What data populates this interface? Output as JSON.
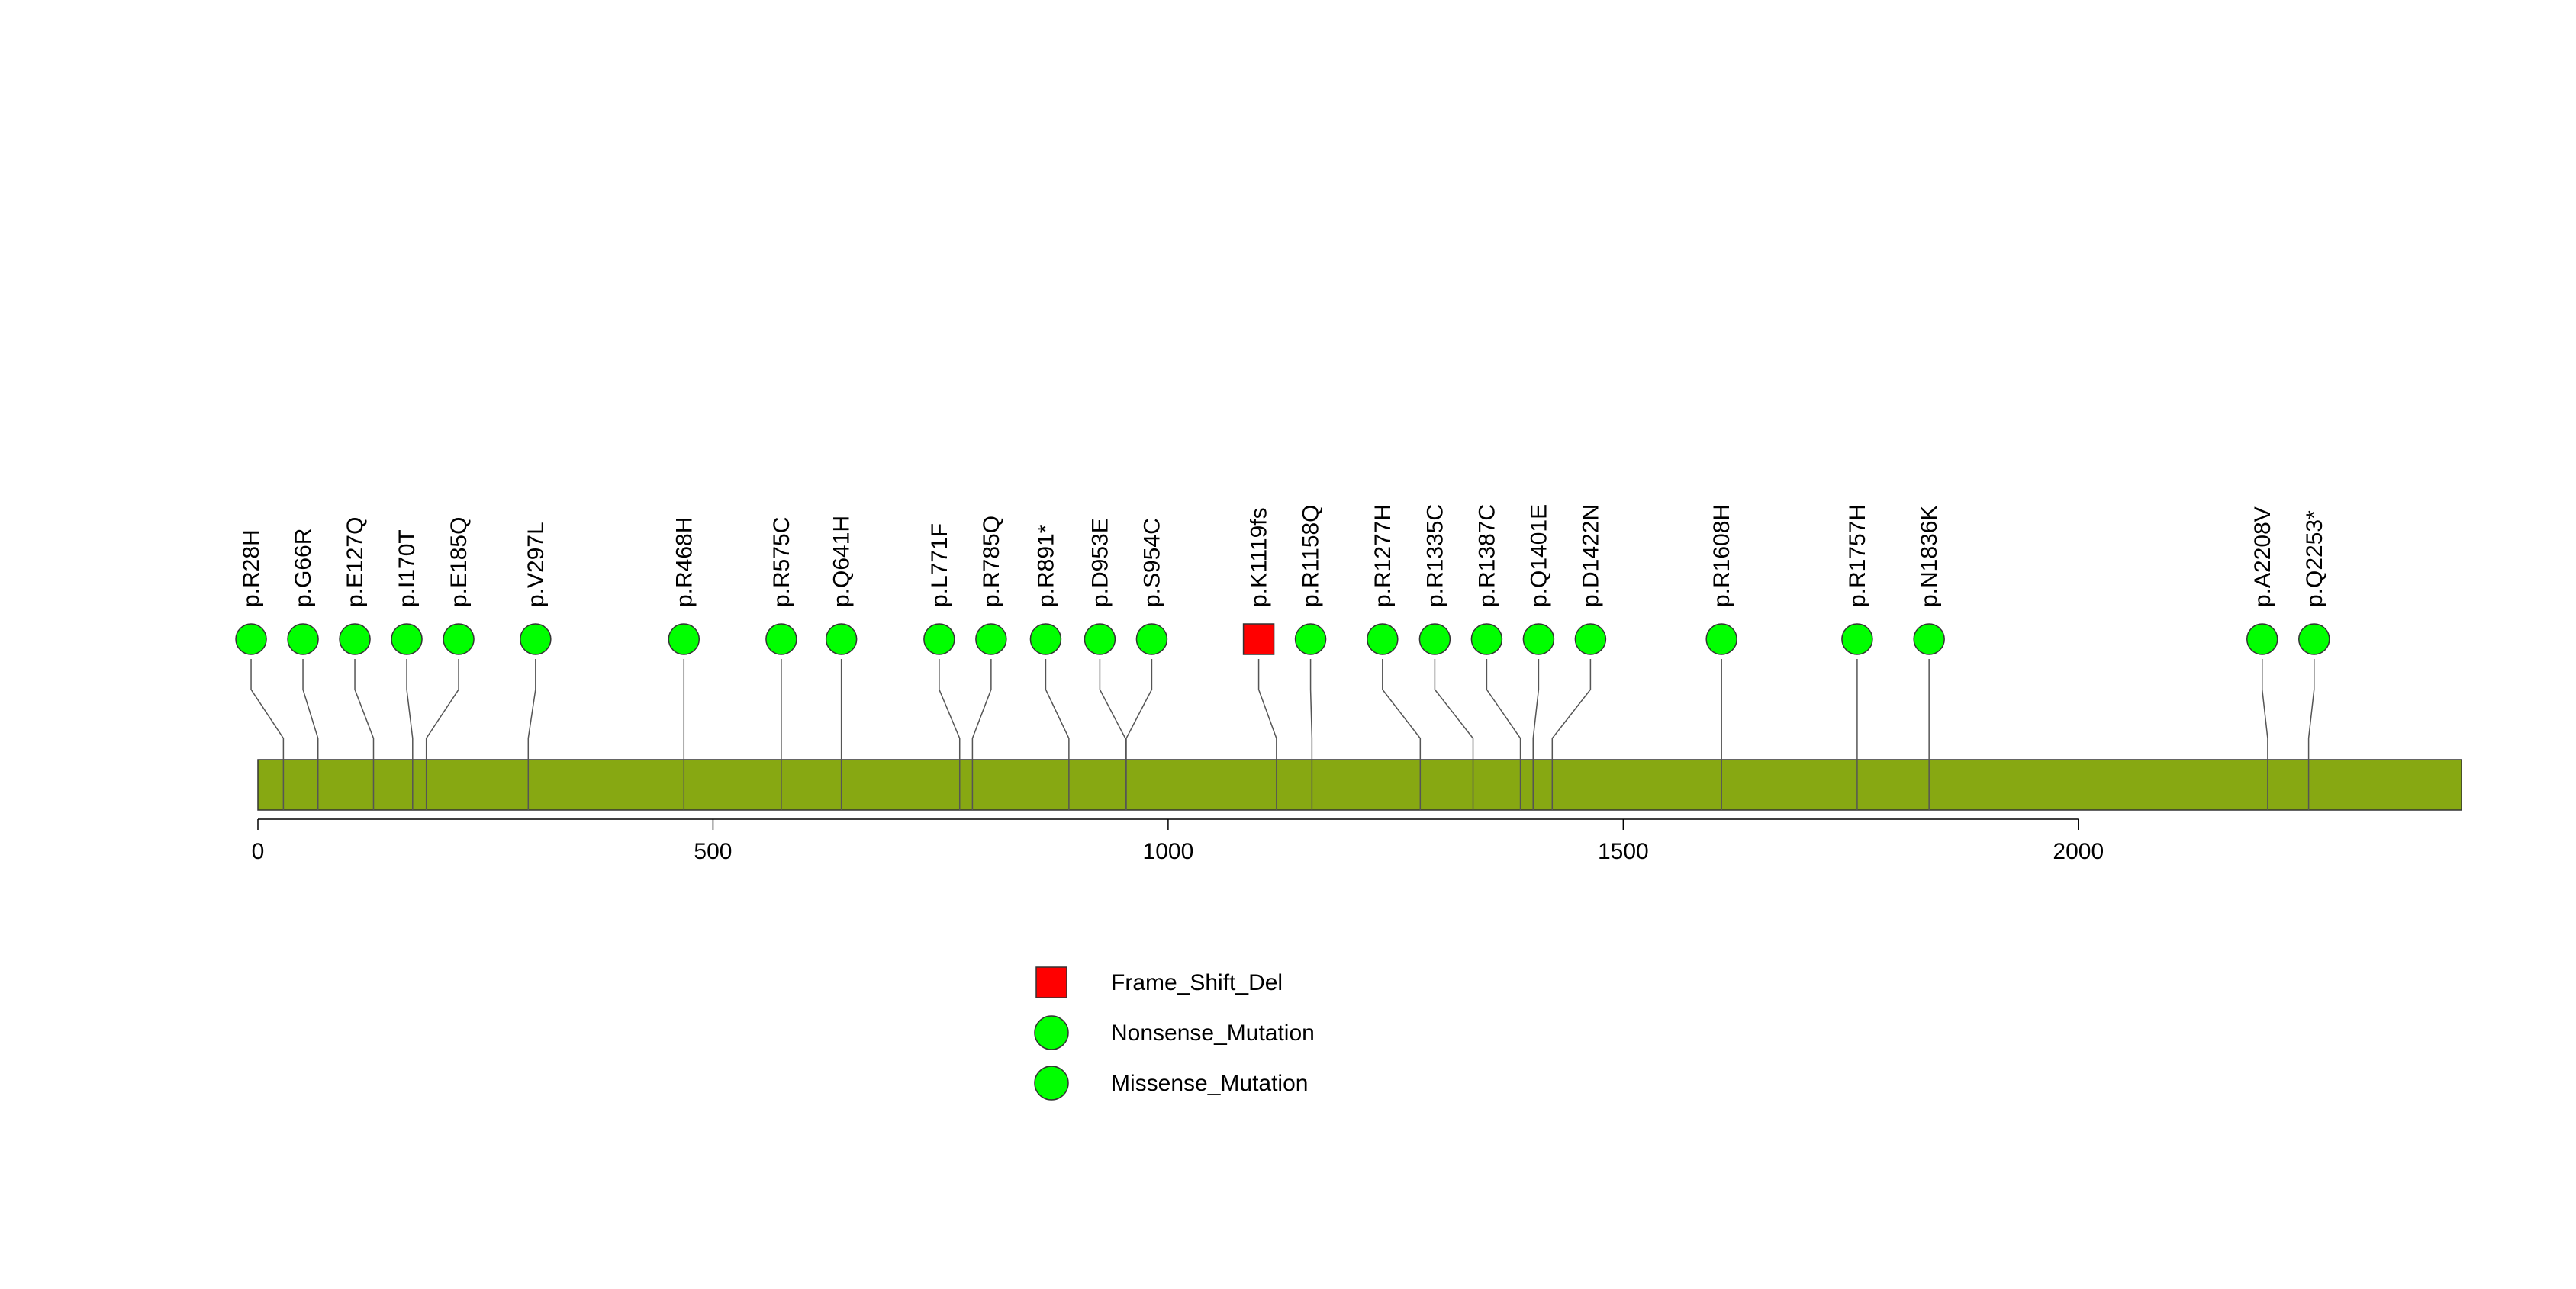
{
  "chart_data": {
    "type": "lollipop",
    "protein_length": 2421,
    "axis": {
      "ticks": [
        0,
        500,
        1000,
        1500,
        2000
      ],
      "tick_labels": [
        "0",
        "500",
        "1000",
        "1500",
        "2000"
      ]
    },
    "colors": {
      "domain": "#87a812",
      "frame_shift": "#ff0000",
      "nonsense": "#00ff00",
      "missense": "#00ff00",
      "line": "#555555"
    },
    "mutations": [
      {
        "label": "p.R28H",
        "position": 28,
        "type": "Missense_Mutation"
      },
      {
        "label": "p.G66R",
        "position": 66,
        "type": "Missense_Mutation"
      },
      {
        "label": "p.E127Q",
        "position": 127,
        "type": "Missense_Mutation"
      },
      {
        "label": "p.I170T",
        "position": 170,
        "type": "Missense_Mutation"
      },
      {
        "label": "p.E185Q",
        "position": 185,
        "type": "Missense_Mutation"
      },
      {
        "label": "p.V297L",
        "position": 297,
        "type": "Missense_Mutation"
      },
      {
        "label": "p.R468H",
        "position": 468,
        "type": "Missense_Mutation"
      },
      {
        "label": "p.R575C",
        "position": 575,
        "type": "Missense_Mutation"
      },
      {
        "label": "p.Q641H",
        "position": 641,
        "type": "Missense_Mutation"
      },
      {
        "label": "p.L771F",
        "position": 771,
        "type": "Missense_Mutation"
      },
      {
        "label": "p.R785Q",
        "position": 785,
        "type": "Missense_Mutation"
      },
      {
        "label": "p.R891*",
        "position": 891,
        "type": "Nonsense_Mutation"
      },
      {
        "label": "p.D953E",
        "position": 953,
        "type": "Missense_Mutation"
      },
      {
        "label": "p.S954C",
        "position": 954,
        "type": "Missense_Mutation"
      },
      {
        "label": "p.K1119fs",
        "position": 1119,
        "type": "Frame_Shift_Del"
      },
      {
        "label": "p.R1158Q",
        "position": 1158,
        "type": "Missense_Mutation"
      },
      {
        "label": "p.R1277H",
        "position": 1277,
        "type": "Missense_Mutation"
      },
      {
        "label": "p.R1335C",
        "position": 1335,
        "type": "Missense_Mutation"
      },
      {
        "label": "p.R1387C",
        "position": 1387,
        "type": "Missense_Mutation"
      },
      {
        "label": "p.Q1401E",
        "position": 1401,
        "type": "Missense_Mutation"
      },
      {
        "label": "p.D1422N",
        "position": 1422,
        "type": "Missense_Mutation"
      },
      {
        "label": "p.R1608H",
        "position": 1608,
        "type": "Missense_Mutation"
      },
      {
        "label": "p.R1757H",
        "position": 1757,
        "type": "Missense_Mutation"
      },
      {
        "label": "p.N1836K",
        "position": 1836,
        "type": "Missense_Mutation"
      },
      {
        "label": "p.A2208V",
        "position": 2208,
        "type": "Missense_Mutation"
      },
      {
        "label": "p.Q2253*",
        "position": 2253,
        "type": "Nonsense_Mutation"
      }
    ],
    "legend": [
      {
        "label": "Frame_Shift_Del",
        "shape": "square",
        "color": "#ff0000"
      },
      {
        "label": "Nonsense_Mutation",
        "shape": "circle",
        "color": "#00ff00"
      },
      {
        "label": "Missense_Mutation",
        "shape": "circle",
        "color": "#00ff00"
      }
    ]
  }
}
